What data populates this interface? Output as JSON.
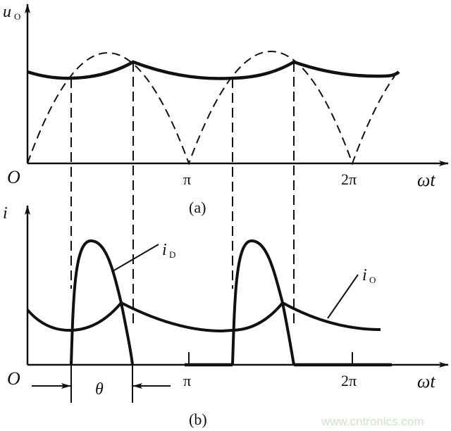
{
  "figure_a": {
    "y_label": "u",
    "y_label_sub": "O",
    "origin": "O",
    "x_label": "ωt",
    "ticks": [
      "π",
      "2π"
    ],
    "caption": "(a)"
  },
  "figure_b": {
    "y_label": "i",
    "origin": "O",
    "x_label": "ωt",
    "ticks": [
      "π",
      "2π"
    ],
    "curve_labels": [
      {
        "main": "i",
        "sub": "D"
      },
      {
        "main": "i",
        "sub": "O"
      }
    ],
    "angle_label": "θ",
    "caption": "(b)"
  },
  "watermark": "www.cntronics.com",
  "colors": {
    "ink": "#111111",
    "watermark": "#cfe3c5"
  }
}
